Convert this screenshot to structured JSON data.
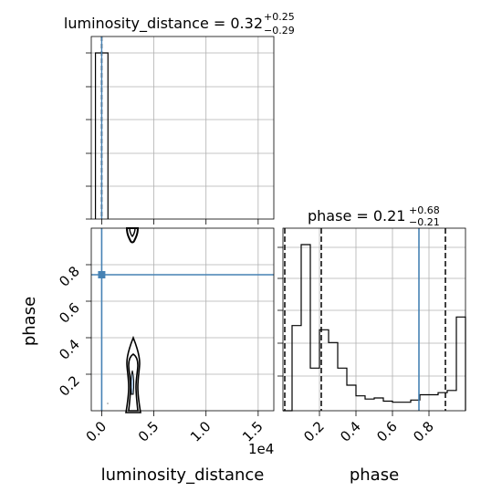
{
  "chart_data": [
    {
      "type": "histogram",
      "panel": "luminosity_distance marginal",
      "title": "luminosity_distance = 0.32",
      "title_sup": "+0.25",
      "title_sub": "−0.29",
      "xlim": [
        -1000,
        16500
      ],
      "x_offset_label": "1e4",
      "quantiles": [
        0.03,
        0.32,
        0.57
      ],
      "bins_x": [
        -600,
        0,
        600
      ],
      "counts": [
        1.0,
        1.0
      ],
      "grid": true
    },
    {
      "type": "contour",
      "panel": "phase vs luminosity_distance",
      "xlabel": "luminosity_distance",
      "ylabel": "phase",
      "xlim": [
        -1000,
        16500
      ],
      "ylim": [
        0.0,
        1.0
      ],
      "x_ticks": [
        0,
        5000,
        10000,
        15000
      ],
      "x_tick_labels": [
        "0.0",
        "0.5",
        "1.0",
        "1.5"
      ],
      "x_offset_label": "1e4",
      "y_ticks": [
        0.2,
        0.4,
        0.6,
        0.8
      ],
      "y_tick_labels": [
        "0.2",
        "0.4",
        "0.6",
        "0.8"
      ],
      "truth": {
        "x": 0,
        "y": 0.745
      },
      "grid": true
    },
    {
      "type": "histogram",
      "panel": "phase marginal",
      "title": "phase = 0.21",
      "title_sup": "+0.68",
      "title_sub": "−0.21",
      "xlabel": "phase",
      "xlim": [
        0.0,
        1.0
      ],
      "x_ticks": [
        0.2,
        0.4,
        0.6,
        0.8
      ],
      "x_tick_labels": [
        "0.2",
        "0.4",
        "0.6",
        "0.8"
      ],
      "bins_x": [
        0.0,
        0.05,
        0.1,
        0.15,
        0.2,
        0.25,
        0.3,
        0.35,
        0.4,
        0.45,
        0.5,
        0.55,
        0.6,
        0.65,
        0.7,
        0.75,
        0.8,
        0.85,
        0.9,
        0.95,
        1.0
      ],
      "counts": [
        0.0,
        0.4,
        0.78,
        0.2,
        0.38,
        0.32,
        0.2,
        0.12,
        0.07,
        0.055,
        0.06,
        0.045,
        0.04,
        0.04,
        0.05,
        0.075,
        0.075,
        0.085,
        0.095,
        0.44
      ],
      "quantiles": [
        0.0,
        0.21,
        0.89
      ],
      "truth": 0.745,
      "grid": true
    }
  ],
  "colors": {
    "truth": "#4682b4",
    "hist": "#000000",
    "grid": "#b0b0b0"
  }
}
